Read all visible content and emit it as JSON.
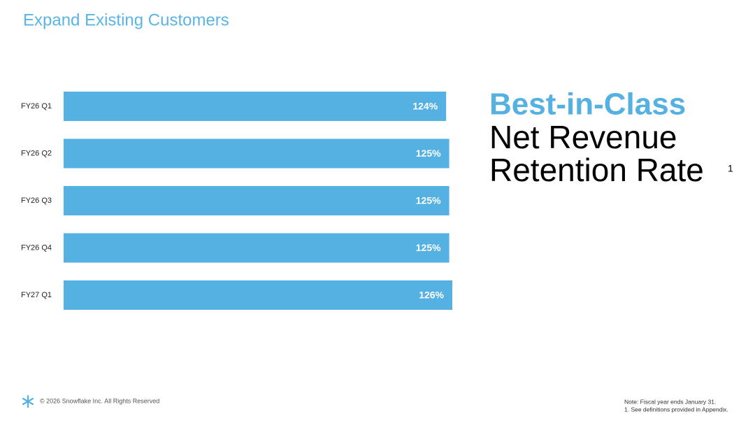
{
  "chart_data": {
    "type": "bar",
    "orientation": "horizontal",
    "title": "Expand Existing Customers",
    "categories": [
      "FY26 Q1",
      "FY26 Q2",
      "FY26 Q3",
      "FY26 Q4",
      "FY27 Q1"
    ],
    "values": [
      124,
      125,
      125,
      125,
      126
    ],
    "value_labels": [
      "124%",
      "125%",
      "125%",
      "125%",
      "126%"
    ],
    "color": "#56b1e3"
  },
  "headline": {
    "highlight": "Best-in-Class",
    "line1": "Net Revenue",
    "line2": "Retention Rate",
    "footnote_ref": "1"
  },
  "footer": {
    "copyright": "© 2026 Snowflake Inc. All Rights Reserved",
    "notes": [
      "Note: Fiscal year ends January 31.",
      "1. See definitions provided in Appendix."
    ]
  }
}
